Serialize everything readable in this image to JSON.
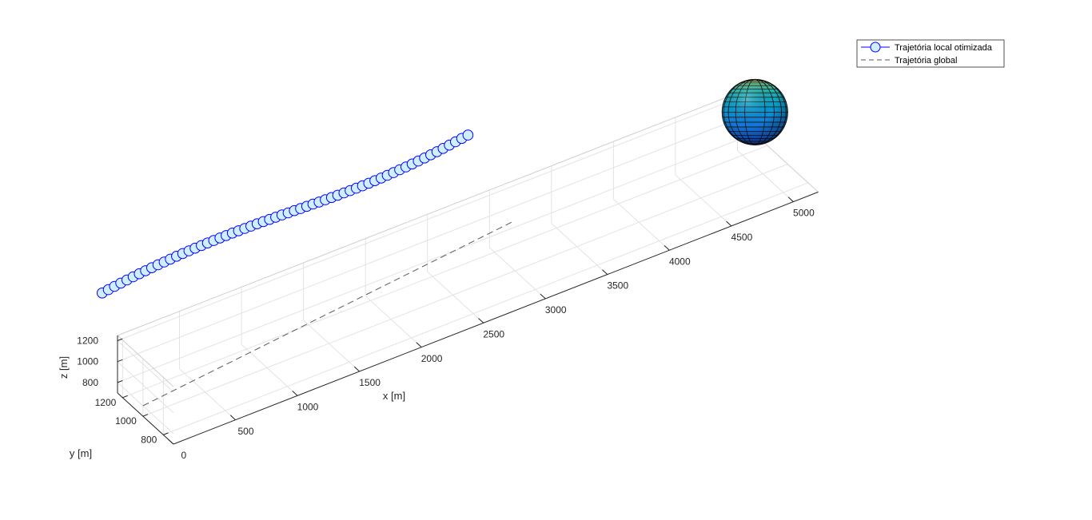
{
  "chart_data": {
    "type": "line3d",
    "title": "",
    "xlabel": "x [m]",
    "ylabel": "y [m]",
    "zlabel": "z [m]",
    "xlim": [
      0,
      5200
    ],
    "ylim": [
      700,
      1250
    ],
    "zlim": [
      700,
      1250
    ],
    "xticks": [
      "0",
      "500",
      "1000",
      "1500",
      "2000",
      "2500",
      "3000",
      "3500",
      "4000",
      "4500",
      "5000"
    ],
    "yticks": [
      "800",
      "1000",
      "1200"
    ],
    "zticks": [
      "800",
      "1000",
      "1200"
    ],
    "grid": true,
    "legend_location": "northeast",
    "legend": [
      "Trajetória local otimizada",
      "Trajetória global"
    ],
    "series": [
      {
        "name": "Trajetória local otimizada",
        "style": "line-circle-markers",
        "color": "#0000ff",
        "marker_face": "#cfeeff",
        "x_start": 0,
        "x_step": 50,
        "count": 60,
        "y": 1000,
        "z": [
          1000,
          1009,
          1017,
          1025,
          1032,
          1039,
          1045,
          1051,
          1056,
          1061,
          1065,
          1069,
          1073,
          1076,
          1079,
          1081,
          1083,
          1084,
          1085,
          1086,
          1086,
          1086,
          1085,
          1084,
          1083,
          1082,
          1080,
          1078,
          1076,
          1074,
          1071,
          1069,
          1066,
          1064,
          1062,
          1059,
          1057,
          1055,
          1054,
          1053,
          1052,
          1052,
          1052,
          1053,
          1054,
          1056,
          1059,
          1062,
          1066,
          1070,
          1075,
          1080,
          1086,
          1093,
          1100,
          1108,
          1116,
          1125,
          1134,
          1143
        ]
      },
      {
        "name": "Trajetória global",
        "style": "dashed",
        "color": "#595959",
        "x": [
          0,
          3000
        ],
        "y": [
          1000,
          1000
        ],
        "z": [
          800,
          1180
        ]
      }
    ],
    "obstacle": {
      "type": "sphere",
      "center": [
        5000,
        1000,
        1000
      ],
      "colormap": "parula"
    }
  }
}
